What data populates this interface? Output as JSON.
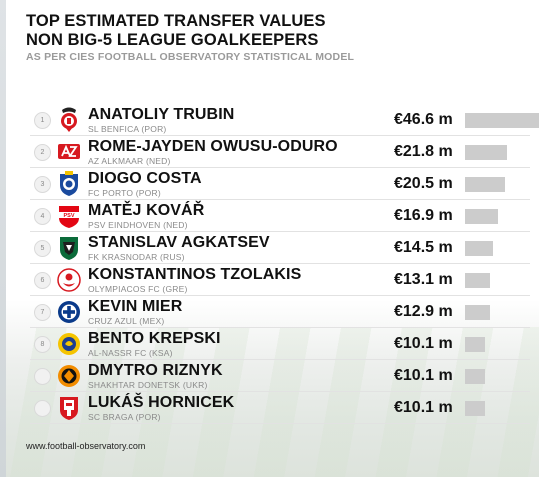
{
  "header": {
    "title_line1": "TOP ESTIMATED TRANSFER VALUES",
    "title_line2": "NON BIG-5 LEAGUE GOALKEEPERS",
    "subtitle": "AS PER CIES FOOTBALL OBSERVATORY STATISTICAL MODEL"
  },
  "footer": {
    "source": "www.football-observatory.com"
  },
  "colors": {
    "bar": "#cccccc",
    "text": "#111111",
    "club_text": "#8a8a8a",
    "subtitle": "#9a9a9a"
  },
  "chart_data": {
    "type": "bar",
    "orientation": "horizontal",
    "title": "TOP ESTIMATED TRANSFER VALUES NON BIG-5 LEAGUE GOALKEEPERS",
    "subtitle": "AS PER CIES FOOTBALL OBSERVATORY STATISTICAL MODEL",
    "xlim": [
      0,
      46.6
    ],
    "rows": [
      {
        "rank": "1",
        "name": "ANATOLIY TRUBIN",
        "club": "SL BENFICA (POR)",
        "value": 46.6,
        "label": "€46.6 m",
        "badge": "benfica-crest-icon"
      },
      {
        "rank": "2",
        "name": "ROME-JAYDEN OWUSU-ODURO",
        "club": "AZ ALKMAAR (NED)",
        "value": 21.8,
        "label": "€21.8 m",
        "badge": "az-alkmaar-crest-icon"
      },
      {
        "rank": "3",
        "name": "DIOGO COSTA",
        "club": "FC PORTO (POR)",
        "value": 20.5,
        "label": "€20.5 m",
        "badge": "fc-porto-crest-icon"
      },
      {
        "rank": "4",
        "name": "MATĚJ KOVÁŘ",
        "club": "PSV EINDHOVEN (NED)",
        "value": 16.9,
        "label": "€16.9 m",
        "badge": "psv-crest-icon"
      },
      {
        "rank": "5",
        "name": "STANISLAV AGKATSEV",
        "club": "FK KRASNODAR (RUS)",
        "value": 14.5,
        "label": "€14.5 m",
        "badge": "krasnodar-crest-icon"
      },
      {
        "rank": "6",
        "name": "KONSTANTINOS TZOLAKIS",
        "club": "OLYMPIACOS FC (GRE)",
        "value": 13.1,
        "label": "€13.1 m",
        "badge": "olympiacos-crest-icon"
      },
      {
        "rank": "7",
        "name": "KEVIN MIER",
        "club": "CRUZ AZUL (MEX)",
        "value": 12.9,
        "label": "€12.9 m",
        "badge": "cruz-azul-crest-icon"
      },
      {
        "rank": "8",
        "name": "BENTO KREPSKI",
        "club": "AL-NASSR FC (KSA)",
        "value": 10.1,
        "label": "€10.1 m",
        "badge": "al-nassr-crest-icon"
      },
      {
        "rank": "",
        "name": "DMYTRO RIZNYK",
        "club": "SHAKHTAR DONETSK (UKR)",
        "value": 10.1,
        "label": "€10.1 m",
        "badge": "shakhtar-crest-icon"
      },
      {
        "rank": "",
        "name": "LUKÁŠ HORNICEK",
        "club": "SC BRAGA (POR)",
        "value": 10.1,
        "label": "€10.1 m",
        "badge": "braga-crest-icon"
      }
    ]
  }
}
